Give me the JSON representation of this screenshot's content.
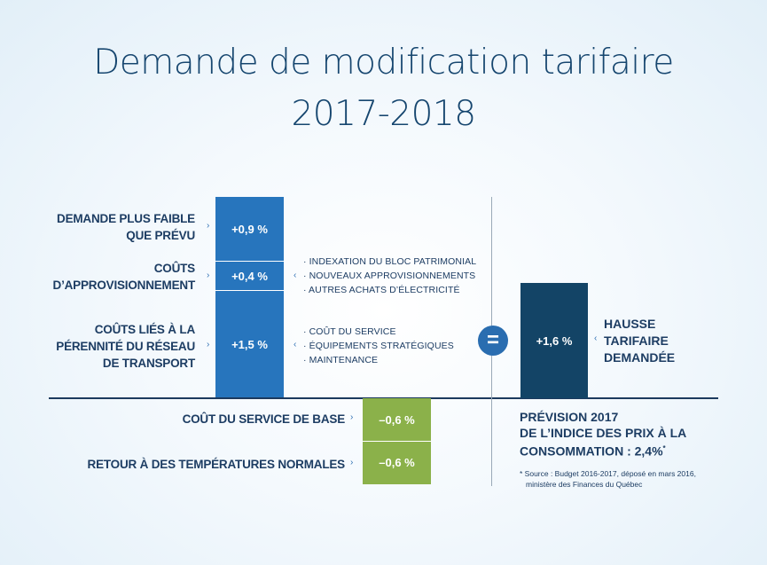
{
  "title": "Demande de modification tarifaire",
  "subtitle": "2017-2018",
  "labels": {
    "demand_line1": "DEMANDE PLUS FAIBLE",
    "demand_line2": "QUE PRÉVU",
    "supply_line1": "COÛTS",
    "supply_line2": "D’APPROVISIONNEMENT",
    "network_line1": "COÛTS LIÉS À LA",
    "network_line2": "PÉRENNITÉ DU RÉSEAU",
    "network_line3": "DE TRANSPORT",
    "base_service": "COÛT DU SERVICE DE BASE",
    "temperatures": "RETOUR À DES TEMPÉRATURES NORMALES",
    "result_line1": "HAUSSE",
    "result_line2": "TARIFAIRE",
    "result_line3": "DEMANDÉE"
  },
  "bullets": {
    "supply": [
      "· INDEXATION DU BLOC PATRIMONIAL",
      "· NOUVEAUX APPROVISIONNEMENTS",
      "· AUTRES ACHATS D’ÉLECTRICITÉ"
    ],
    "network": [
      "· COÛT DU SERVICE",
      "· ÉQUIPEMENTS STRATÉGIQUES",
      "· MAINTENANCE"
    ]
  },
  "forecast": {
    "line1": "PRÉVISION 2017",
    "line2": "DE L’INDICE DES PRIX À LA",
    "line3": "CONSOMMATION : 2,4%",
    "star": "*",
    "footnote1": "* Source : Budget 2016-2017, déposé en mars 2016,",
    "footnote2": "ministère des Finances du Québec"
  },
  "equals_symbol": "=",
  "arrow_glyph": "›",
  "arrow_glyph_left": "‹",
  "colors": {
    "increase": "#2775bd",
    "decrease": "#8bb14a",
    "result": "#134466",
    "title": "#16466f"
  },
  "chart_data": {
    "type": "bar",
    "subtype": "stacked-waterfall",
    "title": "Demande de modification tarifaire 2017-2018",
    "unit": "%",
    "increases": [
      {
        "name": "DEMANDE PLUS FAIBLE QUE PRÉVU",
        "value": 0.9,
        "label": "+0,9 %"
      },
      {
        "name": "COÛTS D’APPROVISIONNEMENT",
        "value": 0.4,
        "label": "+0,4 %"
      },
      {
        "name": "COÛTS LIÉS À LA PÉRENNITÉ DU RÉSEAU DE TRANSPORT",
        "value": 1.5,
        "label": "+1,5 %"
      }
    ],
    "decreases": [
      {
        "name": "COÛT DU SERVICE DE BASE",
        "value": -0.6,
        "label": "–0,6 %"
      },
      {
        "name": "RETOUR À DES TEMPÉRATURES NORMALES",
        "value": -0.6,
        "label": "–0,6 %"
      }
    ],
    "total": {
      "name": "HAUSSE TARIFAIRE DEMANDÉE",
      "value": 1.6,
      "label": "+1,6 %"
    }
  }
}
